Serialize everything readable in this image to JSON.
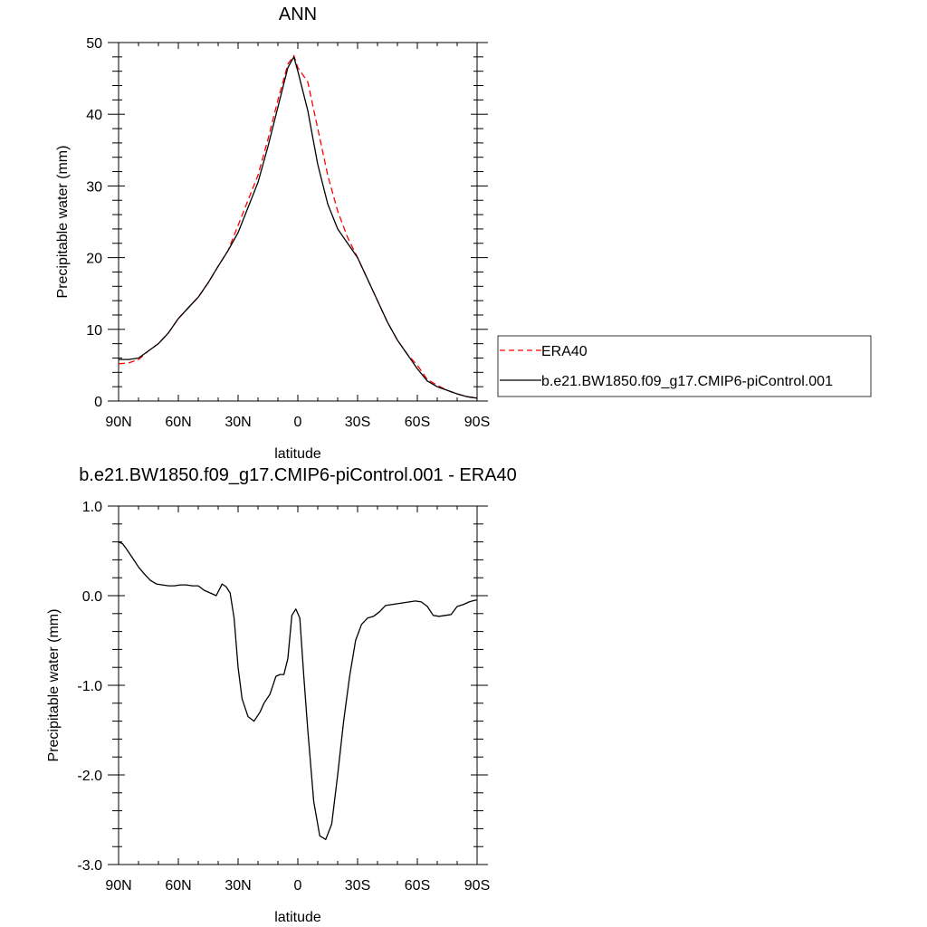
{
  "chart_data": [
    {
      "type": "line",
      "title": "ANN",
      "xlabel": "latitude",
      "ylabel": "Precipitable water (mm)",
      "xlim": [
        90,
        -90
      ],
      "ylim": [
        0,
        50
      ],
      "x_ticks": [
        {
          "value": 90,
          "label": "90N"
        },
        {
          "value": 60,
          "label": "60N"
        },
        {
          "value": 30,
          "label": "30N"
        },
        {
          "value": 0,
          "label": "0"
        },
        {
          "value": -30,
          "label": "30S"
        },
        {
          "value": -60,
          "label": "60S"
        },
        {
          "value": -90,
          "label": "90S"
        }
      ],
      "y_ticks": [
        {
          "value": 0,
          "label": "0"
        },
        {
          "value": 10,
          "label": "10"
        },
        {
          "value": 20,
          "label": "20"
        },
        {
          "value": 30,
          "label": "30"
        },
        {
          "value": 40,
          "label": "40"
        },
        {
          "value": 50,
          "label": "50"
        }
      ],
      "legend_position": "right",
      "series": [
        {
          "name": "ERA40",
          "color": "#ff0000",
          "dash": "dashed",
          "x": [
            90,
            85,
            80,
            75,
            70,
            65,
            60,
            55,
            50,
            45,
            40,
            35,
            30,
            25,
            20,
            15,
            10,
            5,
            2,
            0,
            -5,
            -10,
            -15,
            -20,
            -25,
            -30,
            -35,
            -40,
            -45,
            -50,
            -55,
            -60,
            -65,
            -70,
            -75,
            -80,
            -85,
            -90
          ],
          "y": [
            5.2,
            5.3,
            5.8,
            7.0,
            8.0,
            9.5,
            11.5,
            13.0,
            14.5,
            16.5,
            18.8,
            21.0,
            24.5,
            28.0,
            31.5,
            36.5,
            42.0,
            47.0,
            48.2,
            46.5,
            44.5,
            38.0,
            31.5,
            26.5,
            22.8,
            20.0,
            17.0,
            14.0,
            11.0,
            8.5,
            6.5,
            5.0,
            3.0,
            2.2,
            1.5,
            1.0,
            0.6,
            0.4
          ]
        },
        {
          "name": "b.e21.BW1850.f09_g17.CMIP6-piControl.001",
          "color": "#000000",
          "dash": "solid",
          "x": [
            90,
            85,
            80,
            75,
            70,
            65,
            60,
            55,
            50,
            45,
            40,
            35,
            30,
            25,
            20,
            15,
            10,
            5,
            2,
            0,
            -5,
            -10,
            -15,
            -20,
            -25,
            -30,
            -35,
            -40,
            -45,
            -50,
            -55,
            -60,
            -65,
            -70,
            -75,
            -80,
            -85,
            -90
          ],
          "y": [
            5.8,
            5.8,
            6.0,
            7.0,
            8.0,
            9.5,
            11.5,
            13.0,
            14.5,
            16.5,
            18.8,
            21.0,
            23.5,
            27.0,
            30.5,
            35.5,
            41.0,
            46.5,
            48.0,
            46.0,
            40.5,
            33.0,
            27.5,
            24.0,
            22.0,
            20.0,
            17.0,
            14.0,
            11.0,
            8.5,
            6.5,
            4.5,
            2.8,
            2.0,
            1.5,
            1.0,
            0.6,
            0.4
          ]
        }
      ]
    },
    {
      "type": "line",
      "title": "b.e21.BW1850.f09_g17.CMIP6-piControl.001 - ERA40",
      "xlabel": "latitude",
      "ylabel": "Precipitable water (mm)",
      "xlim": [
        90,
        -90
      ],
      "ylim": [
        -3,
        1
      ],
      "x_ticks": [
        {
          "value": 90,
          "label": "90N"
        },
        {
          "value": 60,
          "label": "60N"
        },
        {
          "value": 30,
          "label": "30N"
        },
        {
          "value": 0,
          "label": "0"
        },
        {
          "value": -30,
          "label": "30S"
        },
        {
          "value": -60,
          "label": "60S"
        },
        {
          "value": -90,
          "label": "90S"
        }
      ],
      "y_ticks": [
        {
          "value": -3,
          "label": "-3.0"
        },
        {
          "value": -2,
          "label": "-2.0"
        },
        {
          "value": -1,
          "label": "-1.0"
        },
        {
          "value": 0,
          "label": "0.0"
        },
        {
          "value": 1,
          "label": "1.0"
        }
      ],
      "series": [
        {
          "color": "#000000",
          "dash": "solid",
          "x": [
            90,
            88,
            86,
            83,
            80,
            77,
            74,
            71,
            68,
            65,
            62,
            59,
            56,
            53,
            50,
            47,
            44,
            41,
            38,
            36,
            34,
            32,
            30,
            28,
            25,
            22,
            19,
            17,
            14,
            11,
            9,
            7,
            5,
            3,
            1,
            -1,
            -3,
            -5,
            -8,
            -11,
            -14,
            -17,
            -20,
            -23,
            -26,
            -29,
            -32,
            -35,
            -38,
            -41,
            -44,
            -47,
            -50,
            -53,
            -56,
            -59,
            -62,
            -65,
            -68,
            -71,
            -74,
            -77,
            -80,
            -83,
            -86,
            -89,
            -90
          ],
          "y": [
            0.6,
            0.58,
            0.52,
            0.42,
            0.32,
            0.24,
            0.17,
            0.13,
            0.12,
            0.11,
            0.11,
            0.12,
            0.12,
            0.11,
            0.11,
            0.06,
            0.03,
            0.0,
            0.13,
            0.1,
            0.03,
            -0.25,
            -0.8,
            -1.15,
            -1.35,
            -1.4,
            -1.3,
            -1.2,
            -1.1,
            -0.9,
            -0.88,
            -0.88,
            -0.7,
            -0.22,
            -0.15,
            -0.25,
            -0.9,
            -1.5,
            -2.3,
            -2.68,
            -2.72,
            -2.55,
            -2.0,
            -1.4,
            -0.9,
            -0.5,
            -0.32,
            -0.25,
            -0.23,
            -0.18,
            -0.11,
            -0.1,
            -0.09,
            -0.08,
            -0.07,
            -0.06,
            -0.07,
            -0.12,
            -0.22,
            -0.23,
            -0.22,
            -0.21,
            -0.12,
            -0.1,
            -0.07,
            -0.05,
            -0.05
          ]
        }
      ]
    }
  ]
}
